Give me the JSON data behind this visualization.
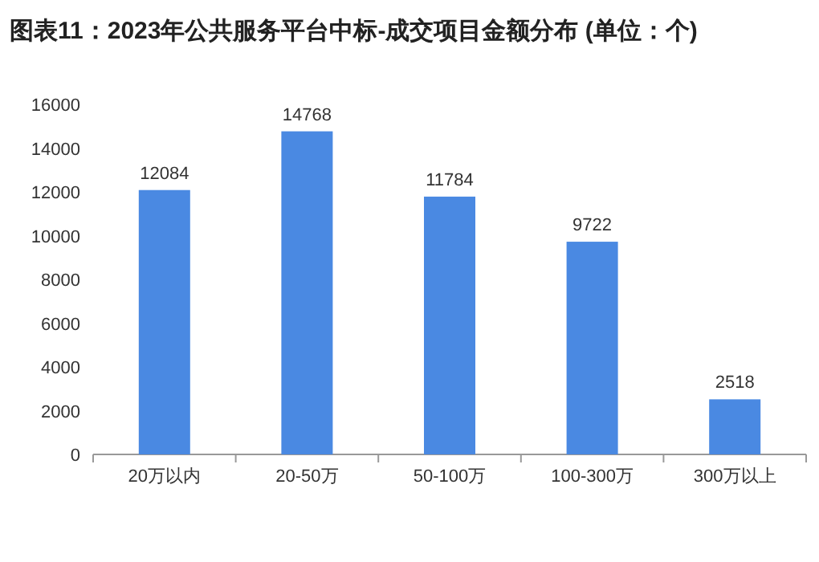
{
  "chart_data": {
    "type": "bar",
    "title": "图表11：2023年公共服务平台中标-成交项目金额分布 (单位：个)",
    "categories": [
      "20万以内",
      "20-50万",
      "50-100万",
      "100-300万",
      "300万以上"
    ],
    "values": [
      12084,
      14768,
      11784,
      9722,
      2518
    ],
    "color": "#4a89e2",
    "ylim": [
      0,
      16000
    ],
    "yticks": [
      0,
      2000,
      4000,
      6000,
      8000,
      10000,
      12000,
      14000,
      16000
    ],
    "data_labels": true
  }
}
